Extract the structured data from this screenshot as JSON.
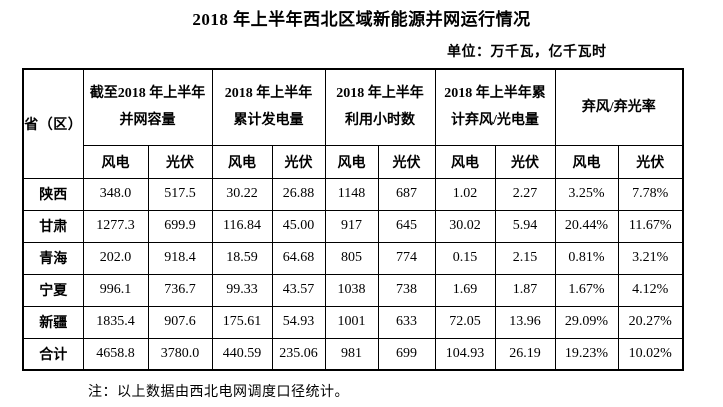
{
  "title": "2018 年上半年西北区域新能源并网运行情况",
  "unit_note": "单位：万千瓦，亿千瓦时",
  "footnote": "注：以上数据由西北电网调度口径统计。",
  "colors": {
    "text": "#000000",
    "background": "#ffffff",
    "border": "#000000"
  },
  "table": {
    "corner_header": "省（区）",
    "group_headers": [
      {
        "line1": "截至2018 年上半年",
        "line2": "并网容量"
      },
      {
        "line1": "2018 年上半年",
        "line2": "累计发电量"
      },
      {
        "line1": "2018 年上半年",
        "line2": "利用小时数"
      },
      {
        "line1": "2018 年上半年累",
        "line2": "计弃风/光电量"
      },
      {
        "line1": "弃风/弃光率",
        "line2": ""
      }
    ],
    "sub_headers": [
      "风电",
      "光伏",
      "风电",
      "光伏",
      "风电",
      "光伏",
      "风电",
      "光伏",
      "风电",
      "光伏"
    ],
    "rows": [
      {
        "label": "陕西",
        "values": [
          "348.0",
          "517.5",
          "30.22",
          "26.88",
          "1148",
          "687",
          "1.02",
          "2.27",
          "3.25%",
          "7.78%"
        ]
      },
      {
        "label": "甘肃",
        "values": [
          "1277.3",
          "699.9",
          "116.84",
          "45.00",
          "917",
          "645",
          "30.02",
          "5.94",
          "20.44%",
          "11.67%"
        ]
      },
      {
        "label": "青海",
        "values": [
          "202.0",
          "918.4",
          "18.59",
          "64.68",
          "805",
          "774",
          "0.15",
          "2.15",
          "0.81%",
          "3.21%"
        ]
      },
      {
        "label": "宁夏",
        "values": [
          "996.1",
          "736.7",
          "99.33",
          "43.57",
          "1038",
          "738",
          "1.69",
          "1.87",
          "1.67%",
          "4.12%"
        ]
      },
      {
        "label": "新疆",
        "values": [
          "1835.4",
          "907.6",
          "175.61",
          "54.93",
          "1001",
          "633",
          "72.05",
          "13.96",
          "29.09%",
          "20.27%"
        ]
      },
      {
        "label": "合计",
        "values": [
          "4658.8",
          "3780.0",
          "440.59",
          "235.06",
          "981",
          "699",
          "104.93",
          "26.19",
          "19.23%",
          "10.02%"
        ]
      }
    ]
  }
}
